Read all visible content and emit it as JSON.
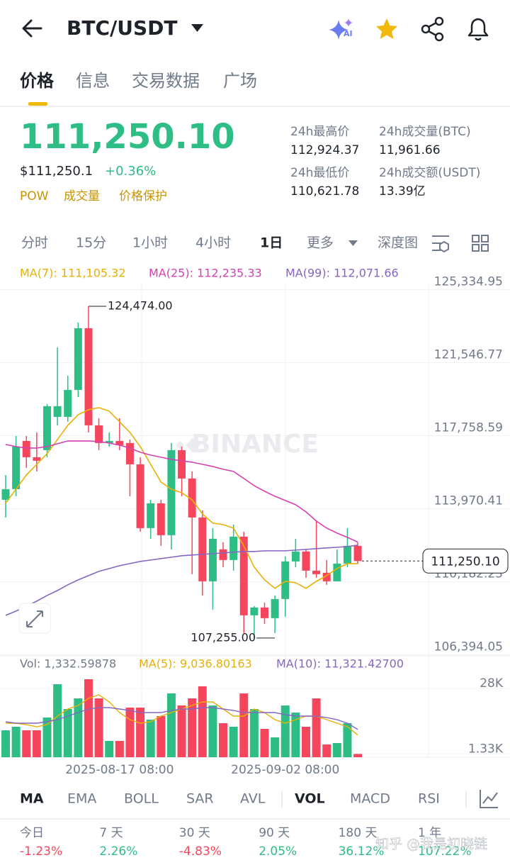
{
  "header": {
    "symbol": "BTC/USDT"
  },
  "tabs": [
    "价格",
    "信息",
    "交易数据",
    "广场"
  ],
  "ticker": {
    "price": "111,250.10",
    "usd": "$111,250.1",
    "change": "+0.36%",
    "tags": [
      "POW",
      "成交量",
      "价格保护"
    ],
    "stats": [
      {
        "label": "24h最高价",
        "value": "112,924.37"
      },
      {
        "label": "24h最低价",
        "value": "110,621.78"
      },
      {
        "label": "24h成交量(BTC)",
        "value": "11,961.66"
      },
      {
        "label": "24h成交额(USDT)",
        "value": "13.39亿"
      }
    ]
  },
  "intervals": [
    "分时",
    "15分",
    "1小时",
    "4小时",
    "1日",
    "更多",
    "深度图"
  ],
  "indicators": [
    "MA",
    "EMA",
    "BOLL",
    "SAR",
    "AVL",
    "VOL",
    "MACD",
    "RSI"
  ],
  "returns": [
    {
      "label": "今日",
      "value": "-1.23%"
    },
    {
      "label": "7 天",
      "value": "2.26%"
    },
    {
      "label": "30 天",
      "value": "-4.83%"
    },
    {
      "label": "90 天",
      "value": "2.05%"
    },
    {
      "label": "180 天",
      "value": "36.12%"
    },
    {
      "label": "1 年",
      "value": "107.22%"
    }
  ],
  "watermark": "知乎 @我是初晓链",
  "chart_data": [
    {
      "type": "candlestick",
      "watermark": "BINANCE",
      "up_color": "#2ebd85",
      "down_color": "#f6465d",
      "categories": [
        null,
        null,
        null,
        null,
        null,
        null,
        null,
        null,
        null,
        null,
        null,
        "2025-08-17 08:00",
        null,
        null,
        null,
        null,
        null,
        null,
        null,
        null,
        null,
        null,
        null,
        null,
        null,
        null,
        null,
        "2025-09-02 08:00",
        null,
        null,
        null,
        null,
        null,
        null,
        null
      ],
      "open": [
        114430,
        114982,
        117484,
        116638,
        117006,
        118735,
        118735,
        120133,
        123334,
        118293,
        117374,
        117484,
        117374,
        116270,
        112959,
        114246,
        112591,
        117006,
        115534,
        113511,
        110199,
        111855,
        111303,
        112517,
        108434,
        108838,
        108286,
        109280,
        111230,
        111745,
        110751,
        110641,
        110199,
        111119,
        112039
      ],
      "high": [
        115718,
        117741,
        117741,
        117925,
        119397,
        122340,
        120869,
        123628,
        124474,
        118661,
        117925,
        118661,
        117557,
        116638,
        114430,
        114430,
        117374,
        117190,
        115902,
        113878,
        112959,
        112223,
        113143,
        112775,
        108912,
        109096,
        109464,
        111487,
        112407,
        111855,
        113327,
        111303,
        111855,
        112959,
        112223
      ],
      "low": [
        113511,
        114614,
        116086,
        115902,
        116638,
        118293,
        118477,
        119765,
        117925,
        117006,
        117190,
        117006,
        114614,
        112775,
        112407,
        112039,
        111855,
        114614,
        110567,
        109464,
        108728,
        110935,
        110751,
        107514,
        107255,
        107992,
        107514,
        108360,
        110935,
        110383,
        110383,
        110016,
        110199,
        110935,
        111119
      ],
      "close": [
        114982,
        117190,
        116638,
        116454,
        119287,
        119287,
        120133,
        123334,
        118293,
        117374,
        117484,
        117263,
        116270,
        112959,
        114246,
        112591,
        117006,
        115534,
        113511,
        110199,
        112407,
        111303,
        112517,
        108434,
        108838,
        108286,
        109280,
        111230,
        111745,
        110751,
        110567,
        110199,
        111119,
        112039,
        111250.1
      ],
      "series": [
        {
          "name": "MA(7): 111,105.32",
          "color": "#e8b004",
          "values": [
            114246,
            114982,
            115718,
            116270,
            116822,
            117557,
            118293,
            118845,
            119103,
            119213,
            119029,
            118477,
            117925,
            117190,
            116270,
            115350,
            114982,
            114798,
            114430,
            113695,
            113216,
            113143,
            112959,
            112039,
            110935,
            110273,
            109832,
            110199,
            110126,
            109832,
            110199,
            110494,
            110862,
            111119,
            111105.32
          ]
        },
        {
          "name": "MA(25): 112,235.33",
          "color": "#d441b0",
          "values": [
            117300,
            117190,
            117116,
            117116,
            117190,
            117337,
            117484,
            117484,
            117484,
            117447,
            117374,
            117263,
            117116,
            116895,
            116748,
            116638,
            116527,
            116454,
            116380,
            116270,
            116159,
            116012,
            115902,
            115534,
            115166,
            114872,
            114614,
            114394,
            114173,
            113805,
            113327,
            112959,
            112701,
            112480,
            112235.33
          ]
        },
        {
          "name": "MA(99): 112,071.66",
          "color": "#8566c2",
          "values": [
            108434,
            108654,
            108912,
            109169,
            109464,
            109721,
            110016,
            110273,
            110494,
            110715,
            110862,
            111009,
            111119,
            111230,
            111303,
            111377,
            111450,
            111524,
            111561,
            111597,
            111634,
            111671,
            111708,
            111745,
            111745,
            111781,
            111781,
            111781,
            111818,
            111855,
            111892,
            111929,
            111965,
            112002,
            112071.66
          ]
        }
      ],
      "ylim": [
        106330,
        125650
      ],
      "yticks": [
        {
          "value": 125334.95,
          "label": "125,334.95"
        },
        {
          "value": 121546.77,
          "label": "121,546.77"
        },
        {
          "value": 117758.59,
          "label": "117,758.59"
        },
        {
          "value": 113970.41,
          "label": "113,970.41"
        },
        {
          "value": 110182.23,
          "label": "110,182.23"
        },
        {
          "value": 106394.05,
          "label": "106,394.05"
        }
      ],
      "annotations": [
        {
          "value": 124474,
          "label": "124,474.00"
        },
        {
          "value": 107255,
          "label": "107,255.00"
        }
      ],
      "last_price": {
        "value": 111250.1,
        "label": "111,250.10"
      }
    },
    {
      "type": "bar",
      "title": "Vol: 1,332.59878",
      "values": [
        10970,
        12413,
        10970,
        10970,
        16166,
        29734,
        19630,
        23961,
        31755,
        23961,
        6640,
        6640,
        20208,
        20208,
        15300,
        16744,
        25981,
        21074,
        23961,
        28868,
        21074,
        13857,
        12413,
        25981,
        19630,
        11547,
        8083,
        21074,
        18187,
        12413,
        23961,
        5196,
        5774,
        13857,
        1332.59878
      ],
      "series": [
        {
          "name": "MA(5): 9,036.80163",
          "color": "#e8b004",
          "values": [
            13857,
            13857,
            13279,
            12413,
            13279,
            16744,
            19630,
            21074,
            23961,
            25404,
            22517,
            18187,
            15300,
            13857,
            14434,
            16744,
            18187,
            19630,
            21074,
            22517,
            22517,
            19630,
            16744,
            16744,
            19630,
            18187,
            15300,
            13857,
            15300,
            16744,
            16744,
            15300,
            13857,
            12413,
            9036.80163
          ]
        },
        {
          "name": "MA(10): 11,321.42700",
          "color": "#8566c2",
          "values": [
            14434,
            13857,
            13857,
            13857,
            14434,
            15300,
            16744,
            18187,
            19630,
            20208,
            20208,
            19630,
            19053,
            18187,
            18187,
            18187,
            19053,
            19630,
            19630,
            20208,
            20208,
            19630,
            19053,
            18187,
            18187,
            18187,
            18187,
            17321,
            16744,
            16744,
            16744,
            16166,
            15300,
            13857,
            11321.427
          ]
        }
      ],
      "ylim": [
        0,
        39840
      ],
      "yticks": [
        {
          "value": 28000,
          "label": "28K"
        },
        {
          "value": 1330,
          "label": "1.33K"
        }
      ]
    }
  ]
}
